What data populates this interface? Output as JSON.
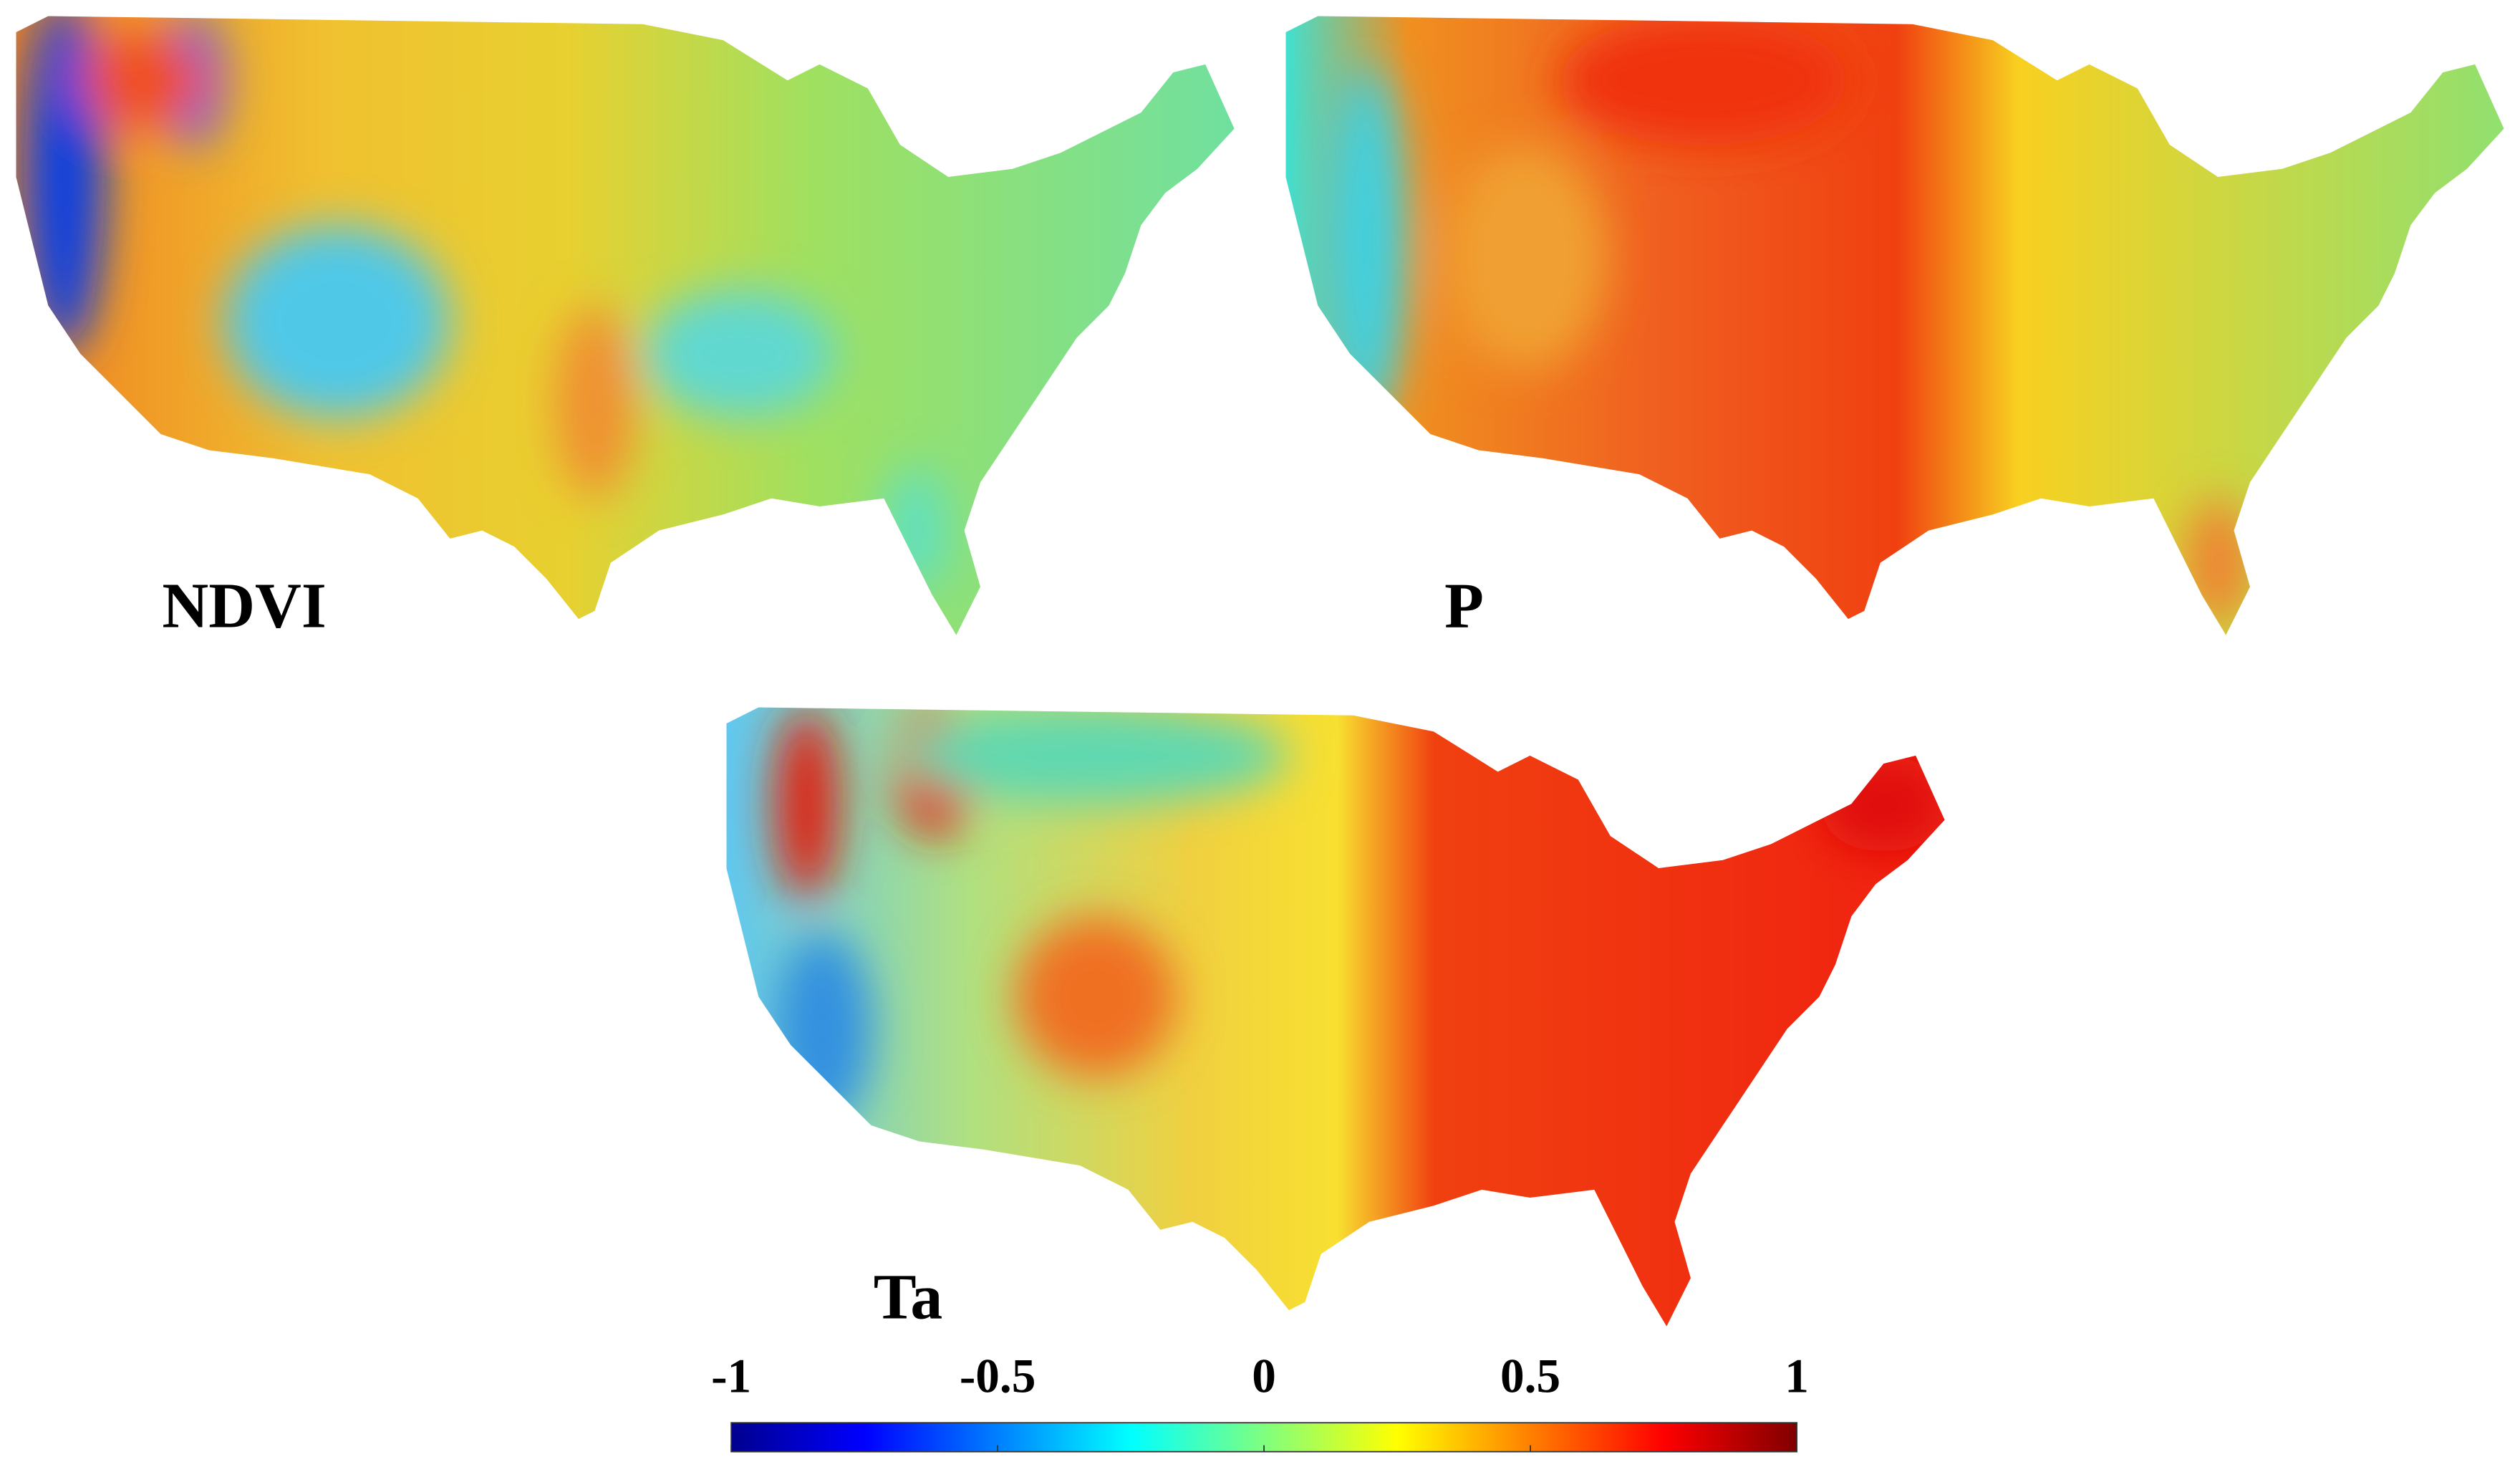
{
  "panels": [
    {
      "label": "NDVI"
    },
    {
      "label": "P"
    },
    {
      "label": "Ta"
    }
  ],
  "colorbar": {
    "lim": [
      -1,
      1
    ],
    "ticks": [
      -1,
      -0.5,
      0,
      0.5,
      1
    ],
    "colormap": "jet"
  }
}
